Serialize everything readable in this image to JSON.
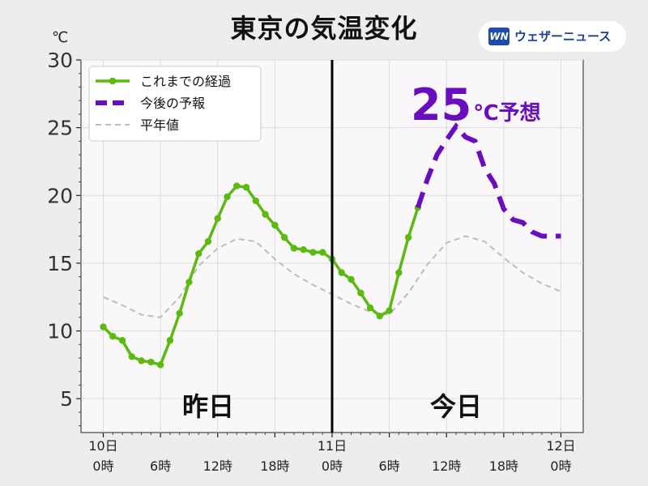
{
  "title": "東京の気温変化",
  "unit": "℃",
  "logo": {
    "text": "ウェザーニュース",
    "mark": "WN"
  },
  "colors": {
    "observed": "#5cb90e",
    "forecast": "#6a0dbf",
    "normal": "#bdbdbd",
    "divider": "#000000"
  },
  "chart_data": {
    "type": "line",
    "title": "東京の気温変化",
    "ylabel": "℃",
    "ylim": [
      2.5,
      30
    ],
    "xlim": [
      0,
      48
    ],
    "yticks": [
      5,
      10,
      15,
      20,
      25,
      30
    ],
    "xtick_labels": [
      {
        "x": 0,
        "line1": "10日",
        "line2": "0時"
      },
      {
        "x": 6,
        "line1": "",
        "line2": "6時"
      },
      {
        "x": 12,
        "line1": "",
        "line2": "12時"
      },
      {
        "x": 18,
        "line1": "",
        "line2": "18時"
      },
      {
        "x": 24,
        "line1": "11日",
        "line2": "0時"
      },
      {
        "x": 30,
        "line1": "",
        "line2": "6時"
      },
      {
        "x": 36,
        "line1": "",
        "line2": "12時"
      },
      {
        "x": 42,
        "line1": "",
        "line2": "18時"
      },
      {
        "x": 48,
        "line1": "12日",
        "line2": "0時"
      }
    ],
    "grid": true,
    "legend_position": "top-left",
    "divider_x": 24,
    "day_labels": [
      {
        "x": 11,
        "text": "昨日"
      },
      {
        "x": 37,
        "text": "今日"
      }
    ],
    "annotation": {
      "value": "25",
      "suffix": "℃予想"
    },
    "series": [
      {
        "name": "これまでの経過",
        "style": "solid-markers",
        "x": [
          0,
          1,
          2,
          3,
          4,
          5,
          6,
          7,
          8,
          9,
          10,
          11,
          12,
          13,
          14,
          15,
          16,
          17,
          18,
          19,
          20,
          21,
          22,
          23,
          24,
          25,
          26,
          27,
          28,
          29,
          30,
          31,
          32,
          33
        ],
        "y": [
          10.3,
          9.6,
          9.3,
          8.1,
          7.8,
          7.7,
          7.5,
          9.3,
          11.3,
          13.6,
          15.7,
          16.6,
          18.3,
          19.9,
          20.7,
          20.6,
          19.6,
          18.6,
          17.8,
          16.9,
          16.1,
          16.0,
          15.8,
          15.8,
          15.3,
          14.3,
          13.8,
          12.8,
          11.7,
          11.1,
          11.5,
          14.3,
          16.9,
          19.1
        ]
      },
      {
        "name": "今後の予報",
        "style": "dashed-thick",
        "x": [
          33,
          34,
          35,
          36,
          37,
          38,
          39,
          40,
          41,
          42,
          43,
          44,
          45,
          46,
          47,
          48
        ],
        "y": [
          19.1,
          21.2,
          23.0,
          24.1,
          25.1,
          24.3,
          24.0,
          22.0,
          20.9,
          19.0,
          18.2,
          18.0,
          17.3,
          17.0,
          17.0,
          17.0
        ]
      },
      {
        "name": "平年値",
        "style": "dashed-thin",
        "x": [
          0,
          2,
          4,
          6,
          8,
          10,
          12,
          14,
          16,
          18,
          20,
          22,
          24,
          26,
          28,
          30,
          32,
          34,
          36,
          38,
          40,
          42,
          44,
          46,
          48
        ],
        "y": [
          12.5,
          11.9,
          11.2,
          11.0,
          12.5,
          14.8,
          16.1,
          16.8,
          16.6,
          15.3,
          14.2,
          13.4,
          12.7,
          12.0,
          11.4,
          11.2,
          12.8,
          14.9,
          16.5,
          17.0,
          16.6,
          15.4,
          14.3,
          13.5,
          12.9
        ]
      }
    ]
  }
}
